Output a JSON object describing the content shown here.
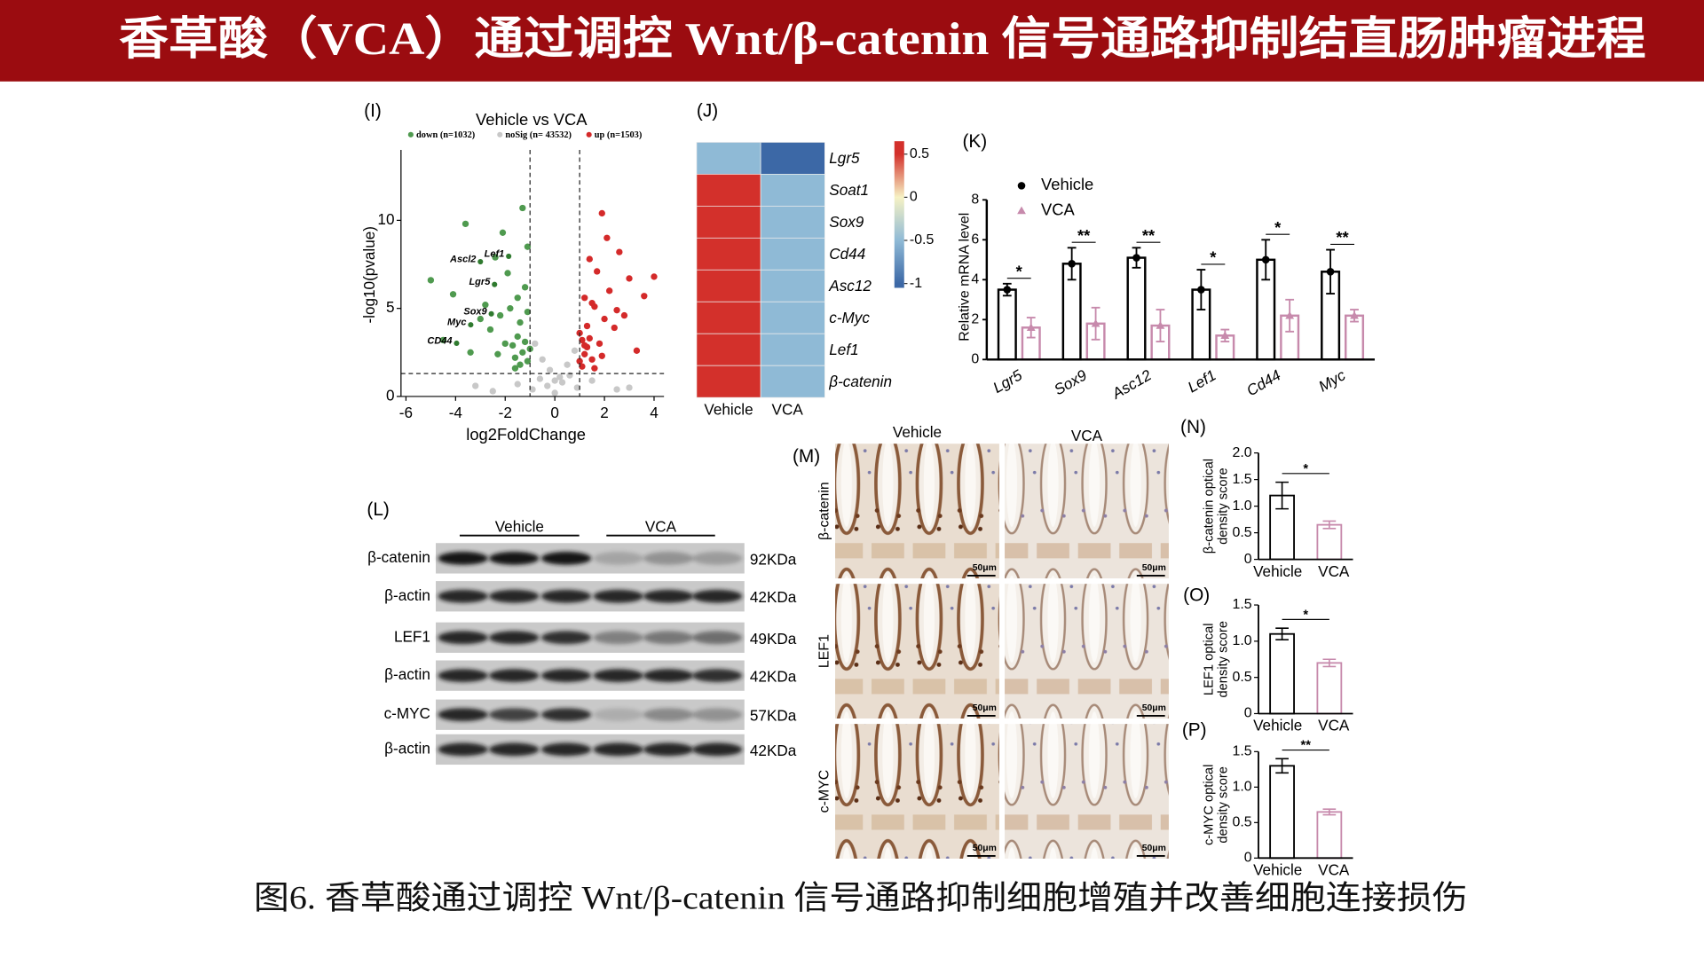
{
  "header": {
    "title": "香草酸（VCA）通过调控 Wnt/β-catenin 信号通路抑制结直肠肿瘤进程"
  },
  "chart_data": [
    {
      "type": "scatter",
      "panel": "(I)",
      "title": "Vehicle vs VCA",
      "x_label": "log2FoldChange",
      "y_label": "-log10(pvalue)",
      "xlim": [
        -6.2,
        4.4
      ],
      "ylim": [
        0,
        14
      ],
      "xticks": [
        -6,
        -4,
        -2,
        0,
        2,
        4
      ],
      "yticks": [
        0,
        5,
        10
      ],
      "thresholds_x": [
        -1,
        1
      ],
      "threshold_y": 1.3,
      "legend": "top",
      "series": [
        {
          "name": "down (n=1032)",
          "color": "#4f9a4f",
          "x": [
            -1.1,
            -1.2,
            -1.3,
            -1.4,
            -1.5,
            -1.6,
            -1.8,
            -2.0,
            -2.2,
            -1.2,
            -1.4,
            -1.7,
            -1.9,
            -2.3,
            -2.6,
            -1.1,
            -1.3,
            -1.5,
            -2.8,
            -3.0,
            -3.4,
            -4.1,
            -4.5,
            -5.0,
            -2.1,
            -1.1,
            -1.6,
            -3.6,
            -2.4,
            -1.0
          ],
          "y": [
            2.0,
            3.1,
            2.5,
            4.2,
            3.4,
            2.2,
            5.0,
            3.0,
            4.6,
            6.2,
            1.8,
            2.9,
            7.0,
            2.4,
            3.8,
            8.5,
            10.7,
            5.6,
            5.2,
            4.4,
            2.5,
            5.8,
            3.2,
            6.6,
            9.3,
            4.8,
            1.6,
            9.8,
            7.9,
            2.7
          ]
        },
        {
          "name": "noSig (n= 43532)",
          "color": "#c8c8c8",
          "x": [
            -0.9,
            -0.6,
            -0.3,
            0,
            0.3,
            0.6,
            0.9,
            -1.5,
            -2.5,
            1.5,
            2.5,
            -0.5,
            0.5,
            -0.8,
            0.8,
            -0.2,
            0.2,
            -3.2,
            3.0,
            0.0
          ],
          "y": [
            0.4,
            1.0,
            0.6,
            0.2,
            0.8,
            1.2,
            0.5,
            0.7,
            0.3,
            0.9,
            0.4,
            2.1,
            1.8,
            3.0,
            2.6,
            1.5,
            1.1,
            0.6,
            0.5,
            0.9
          ]
        },
        {
          "name": "up (n=1503)",
          "color": "#d42a2a",
          "x": [
            1.0,
            1.1,
            1.2,
            1.3,
            1.4,
            1.5,
            1.6,
            1.8,
            2.0,
            2.2,
            1.1,
            1.3,
            1.7,
            1.9,
            2.4,
            2.6,
            1.2,
            1.5,
            2.8,
            3.0,
            3.3,
            4.0,
            1.0,
            1.4,
            2.1,
            2.5,
            1.6,
            3.6,
            1.9,
            1.2
          ],
          "y": [
            2.0,
            3.2,
            2.4,
            4.0,
            3.3,
            2.1,
            5.1,
            3.0,
            4.4,
            6.0,
            1.7,
            2.8,
            7.1,
            2.3,
            3.9,
            8.2,
            5.6,
            5.3,
            4.6,
            6.7,
            2.6,
            6.8,
            3.6,
            7.8,
            9.0,
            4.9,
            1.6,
            5.7,
            10.4,
            2.9
          ]
        }
      ],
      "labels": [
        {
          "text": "Ascl2",
          "x": -3.0,
          "y": 7.65
        },
        {
          "text": "Lef1",
          "x": -1.86,
          "y": 7.96
        },
        {
          "text": "Lgr5",
          "x": -2.43,
          "y": 6.36
        },
        {
          "text": "Sox9",
          "x": -2.56,
          "y": 4.69
        },
        {
          "text": "Myc",
          "x": -3.39,
          "y": 4.07
        },
        {
          "text": "CD44",
          "x": -3.96,
          "y": 3.02
        }
      ]
    },
    {
      "type": "heatmap",
      "panel": "(J)",
      "rows": [
        "Lgr5",
        "Soat1",
        "Sox9",
        "Cd44",
        "Asc12",
        "c-Myc",
        "Lef1",
        "β-catenin"
      ],
      "columns": [
        "Vehicle",
        "VCA"
      ],
      "values": [
        [
          -0.5,
          -1.0
        ],
        [
          0.5,
          -0.5
        ],
        [
          0.5,
          -0.5
        ],
        [
          0.5,
          -0.5
        ],
        [
          0.5,
          -0.5
        ],
        [
          0.5,
          -0.5
        ],
        [
          0.5,
          -0.5
        ],
        [
          0.5,
          -0.5
        ]
      ],
      "colorbar_lim": [
        -1.05,
        0.65
      ],
      "colorbar_ticks": [
        0.5,
        0,
        -0.5,
        -1
      ],
      "colormap": [
        {
          "value": -1,
          "color": "#3c68a6"
        },
        {
          "value": -0.5,
          "color": "#8fbad6"
        },
        {
          "value": 0,
          "color": "#f6f2c4"
        },
        {
          "value": 0.5,
          "color": "#d3302b"
        }
      ]
    },
    {
      "type": "bar",
      "panel": "(K)",
      "y_label": "Relative mRNA level",
      "categories": [
        "Lgr5",
        "Sox9",
        "Asc12",
        "Lef1",
        "Cd44",
        "Myc"
      ],
      "ylim": [
        0,
        8
      ],
      "yticks": [
        0,
        2,
        4,
        6,
        8
      ],
      "legend": "top-left",
      "series": [
        {
          "name": "Vehicle",
          "color": "#000000",
          "marker": "circle",
          "values": [
            3.5,
            4.8,
            5.1,
            3.5,
            5.0,
            4.4
          ],
          "errors": [
            0.3,
            0.8,
            0.5,
            1.0,
            1.0,
            1.1
          ]
        },
        {
          "name": "VCA",
          "color": "#c78aac",
          "marker": "triangle",
          "values": [
            1.6,
            1.8,
            1.7,
            1.2,
            2.2,
            2.2
          ],
          "errors": [
            0.5,
            0.8,
            0.8,
            0.3,
            0.8,
            0.3
          ]
        }
      ],
      "significance": [
        "*",
        "**",
        "**",
        "*",
        "*",
        "**"
      ]
    },
    {
      "type": "bar2",
      "panel": "(N)",
      "y_label": [
        "β-catenin optical",
        "density score"
      ],
      "categories": [
        "Vehicle",
        "VCA"
      ],
      "colors": [
        "#000000",
        "#c78aac"
      ],
      "values": [
        1.2,
        0.65
      ],
      "errors": [
        0.25,
        0.07
      ],
      "significance": "*",
      "ylim": [
        0,
        2
      ],
      "yticks": [
        0,
        0.5,
        {
          "value": 1,
          "label": "1.0"
        },
        1.5,
        {
          "value": 2,
          "label": "2.0"
        }
      ]
    },
    {
      "type": "bar2",
      "panel": "(O)",
      "y_label": [
        "LEF1 optical",
        "density score"
      ],
      "categories": [
        "Vehicle",
        "VCA"
      ],
      "colors": [
        "#000000",
        "#c78aac"
      ],
      "values": [
        1.1,
        0.7
      ],
      "errors": [
        0.08,
        0.05
      ],
      "significance": "*",
      "ylim": [
        0,
        1.5
      ],
      "yticks": [
        0,
        0.5,
        {
          "value": 1,
          "label": "1.0"
        },
        1.5
      ]
    },
    {
      "type": "bar2",
      "panel": "(P)",
      "y_label": [
        "c-MYC optical",
        "density score"
      ],
      "categories": [
        "Vehicle",
        "VCA"
      ],
      "colors": [
        "#000000",
        "#c78aac"
      ],
      "values": [
        1.3,
        0.65
      ],
      "errors": [
        0.1,
        0.04
      ],
      "significance": "**",
      "ylim": [
        0,
        1.5
      ],
      "yticks": [
        0,
        0.5,
        {
          "value": 1,
          "label": "1.0"
        },
        1.5
      ]
    }
  ],
  "western_blot": {
    "panel": "(L)",
    "groups": [
      "Vehicle",
      "VCA"
    ],
    "rows": [
      {
        "protein": "β-catenin",
        "size": "92KDa"
      },
      {
        "protein": "β-actin",
        "size": "42KDa"
      },
      {
        "protein": "LEF1",
        "size": "49KDa"
      },
      {
        "protein": "β-actin",
        "size": "42KDa"
      },
      {
        "protein": "c-MYC",
        "size": "57KDa"
      },
      {
        "protein": "β-actin",
        "size": "42KDa"
      }
    ]
  },
  "ihc": {
    "panel": "(M)",
    "columns": [
      "Vehicle",
      "VCA"
    ],
    "rows": [
      "β-catenin",
      "LEF1",
      "c-MYC"
    ],
    "scale_bar": "50μm"
  },
  "caption": "图6. 香草酸通过调控 Wnt/β-catenin 信号通路抑制细胞增殖并改善细胞连接损伤"
}
